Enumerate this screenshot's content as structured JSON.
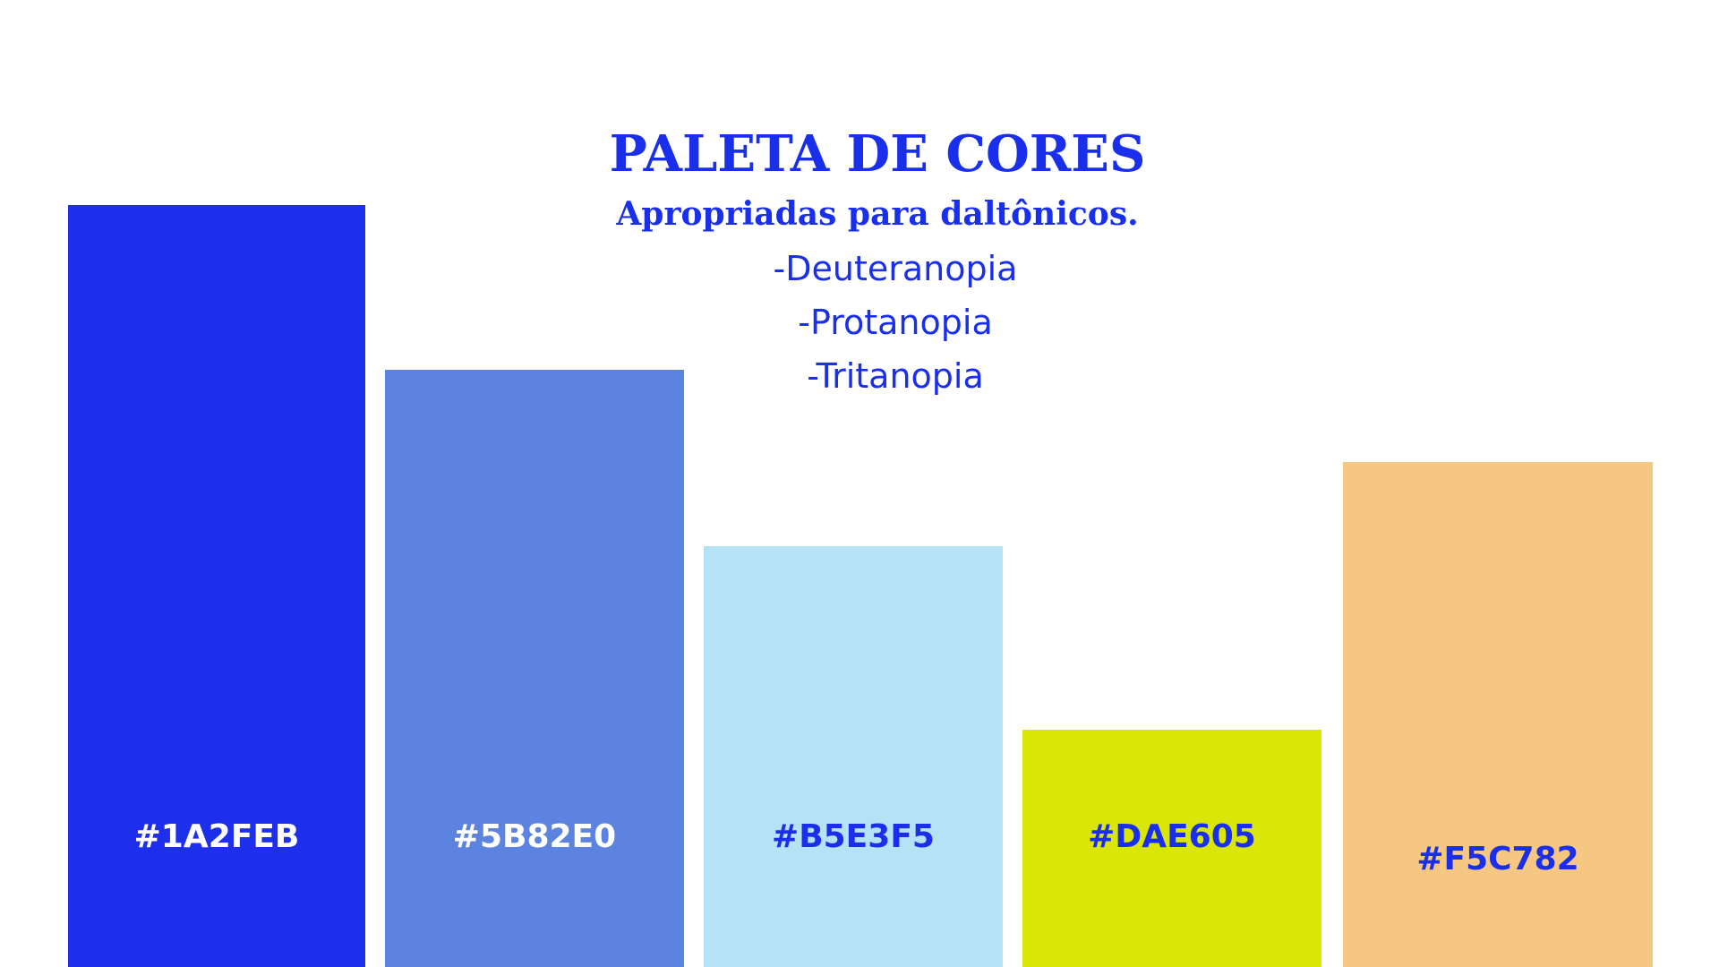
{
  "title": "PALETA DE CORES",
  "subtitle": "Apropriadas para daltônicos.",
  "types": [
    "-Deuteranopia",
    "-Protanopia",
    "-Tritanopia"
  ],
  "accent_color": "#1A2FEB",
  "swatches": [
    {
      "label": "#1A2FEB",
      "fill": "#1D2FEB",
      "text_color": "#FFFFFF"
    },
    {
      "label": "#5B82E0",
      "fill": "#5D83E0",
      "text_color": "#FFFFFF"
    },
    {
      "label": "#B5E3F5",
      "fill": "#B5E3F5",
      "text_color": "#1A2FEB"
    },
    {
      "label": "#DAE605",
      "fill": "#DAE605",
      "text_color": "#1A2FEB"
    },
    {
      "label": "#F5C782",
      "fill": "#F5C782",
      "text_color": "#1A2FEB"
    }
  ]
}
